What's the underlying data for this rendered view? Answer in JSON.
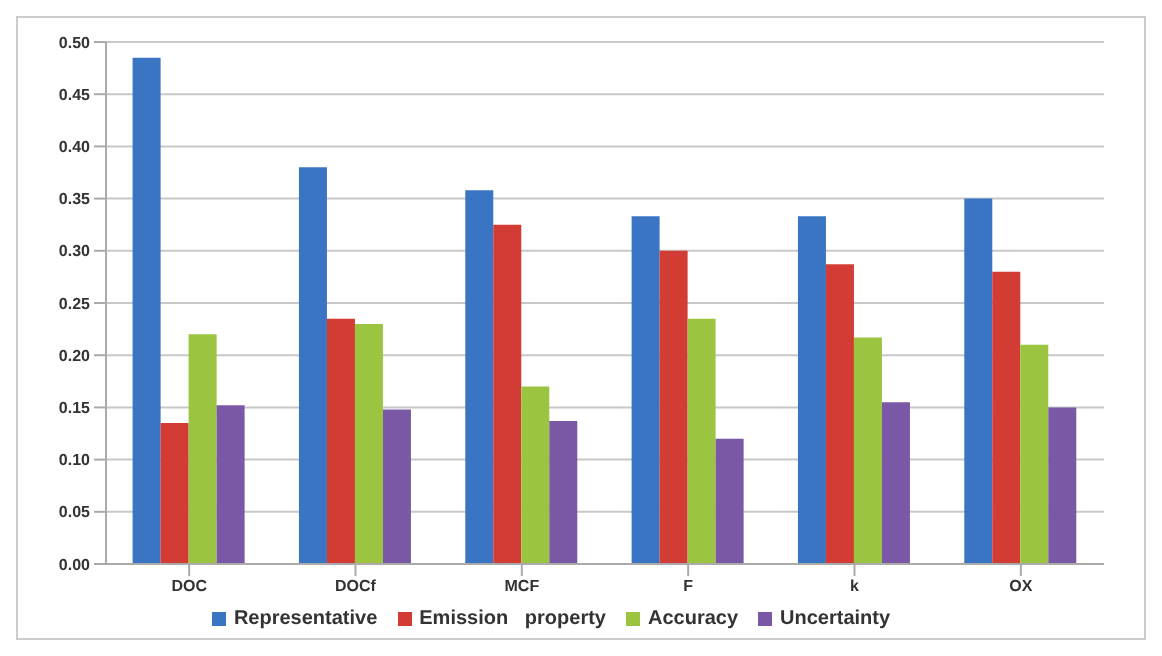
{
  "chart_data": {
    "type": "bar",
    "categories": [
      "DOC",
      "DOCf",
      "MCF",
      "F",
      "k",
      "OX"
    ],
    "series": [
      {
        "name": "Representative",
        "color": "#3a75c4",
        "values": [
          0.485,
          0.38,
          0.358,
          0.333,
          0.333,
          0.35
        ]
      },
      {
        "name": "Emission   property",
        "color": "#d33b35",
        "values": [
          0.135,
          0.235,
          0.325,
          0.3,
          0.287,
          0.28
        ]
      },
      {
        "name": "Accuracy",
        "color": "#9bc540",
        "values": [
          0.22,
          0.23,
          0.17,
          0.235,
          0.217,
          0.21
        ]
      },
      {
        "name": "Uncertainty",
        "color": "#7a58a6",
        "values": [
          0.152,
          0.148,
          0.137,
          0.12,
          0.155,
          0.15
        ]
      }
    ],
    "ylim": [
      0,
      0.5
    ],
    "yticks": [
      {
        "value": 0,
        "label": "0.00"
      },
      {
        "value": 0.05,
        "label": "0.05"
      },
      {
        "value": 0.1,
        "label": "0.10"
      },
      {
        "value": 0.15,
        "label": "0.15"
      },
      {
        "value": 0.2,
        "label": "0.20"
      },
      {
        "value": 0.25,
        "label": "0.25"
      },
      {
        "value": 0.3,
        "label": "0.30"
      },
      {
        "value": 0.35,
        "label": "0.35"
      },
      {
        "value": 0.4,
        "label": "0.40"
      },
      {
        "value": 0.45,
        "label": "0.45"
      },
      {
        "value": 0.5,
        "label": "0.50"
      }
    ],
    "grid": "y",
    "legend": "bottom"
  }
}
